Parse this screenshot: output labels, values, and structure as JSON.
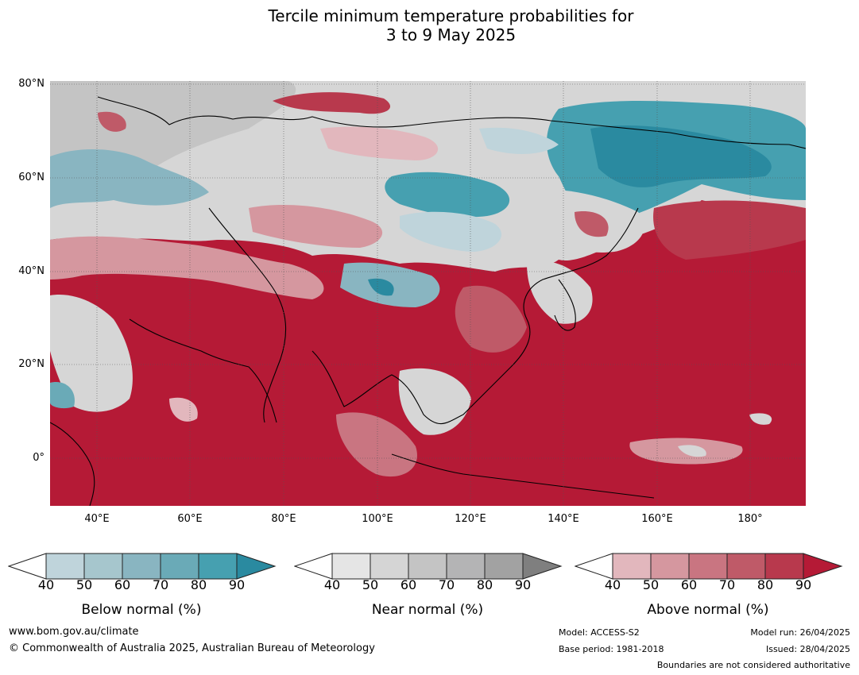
{
  "title": {
    "line1": "Tercile minimum temperature probabilities for",
    "line2": "3 to 9 May 2025"
  },
  "map": {
    "latitude_labels": [
      "80°N",
      "60°N",
      "40°N",
      "20°N",
      "0°"
    ],
    "longitude_labels": [
      "40°E",
      "60°E",
      "80°E",
      "100°E",
      "120°E",
      "140°E",
      "160°E",
      "180°"
    ]
  },
  "colorbars": [
    {
      "label": "Below normal (%)",
      "ticks": [
        "40",
        "50",
        "60",
        "70",
        "80",
        "90"
      ],
      "colors": [
        "#ffffff",
        "#bfd4db",
        "#a6c6cd",
        "#89b5c1",
        "#6aaab7",
        "#46a0b0",
        "#2a8aa0"
      ]
    },
    {
      "label": "Near normal (%)",
      "ticks": [
        "40",
        "50",
        "60",
        "70",
        "80",
        "90"
      ],
      "colors": [
        "#ffffff",
        "#e5e5e5",
        "#d5d5d5",
        "#c4c4c4",
        "#b4b4b5",
        "#a2a2a2",
        "#7f7f7f"
      ]
    },
    {
      "label": "Above normal (%)",
      "ticks": [
        "40",
        "50",
        "60",
        "70",
        "80",
        "90"
      ],
      "colors": [
        "#ffffff",
        "#e2b7bd",
        "#d5979f",
        "#c97581",
        "#bf5a68",
        "#b8394d",
        "#b51a36"
      ]
    }
  ],
  "footer": {
    "website": "www.bom.gov.au/climate",
    "copyright": "© Commonwealth of Australia 2025, Australian Bureau of Meteorology",
    "model": "Model: ACCESS-S2",
    "base_period": "Base period: 1981-2018",
    "model_run": "Model run: 26/04/2025",
    "issued": "Issued: 28/04/2025",
    "disclaimer": "Boundaries are not considered authoritative"
  }
}
